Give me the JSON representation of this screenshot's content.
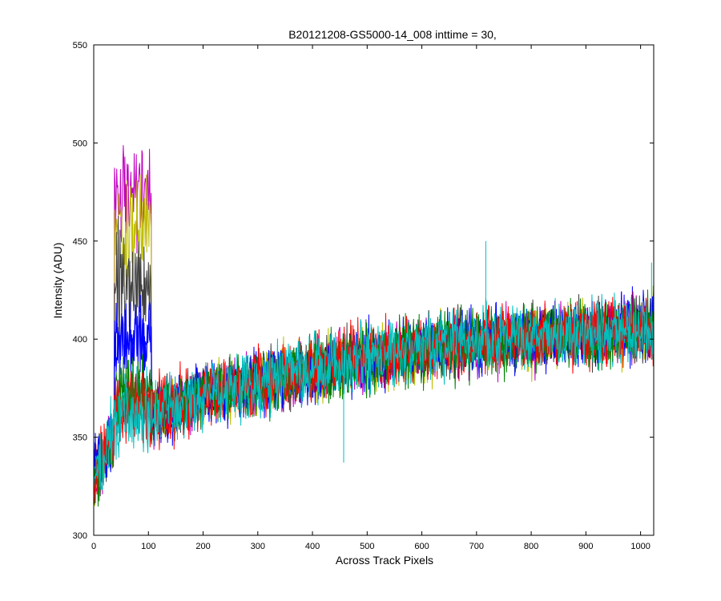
{
  "chart_data": {
    "type": "line",
    "title": "B20121208-GS5000-14_008 inttime = 30,",
    "xlabel": "Across Track Pixels",
    "ylabel": "Intensity (ADU)",
    "xlim": [
      0,
      1024
    ],
    "ylim": [
      300,
      550
    ],
    "xticks": [
      0,
      100,
      200,
      300,
      400,
      500,
      600,
      700,
      800,
      900,
      1000
    ],
    "yticks": [
      300,
      350,
      400,
      450,
      500,
      550
    ],
    "xtick_labels": [
      "0",
      "100",
      "200",
      "300",
      "400",
      "500",
      "600",
      "700",
      "800",
      "900",
      "1000"
    ],
    "ytick_labels": [
      "300",
      "350",
      "400",
      "450",
      "500",
      "550"
    ],
    "grid": false,
    "legend": "none",
    "background_profile": {
      "x": [
        0,
        20,
        40,
        60,
        100,
        150,
        200,
        300,
        400,
        500,
        600,
        700,
        800,
        900,
        1000,
        1024
      ],
      "y": [
        330,
        342,
        352,
        357,
        362,
        366,
        372,
        378,
        384,
        390,
        395,
        399,
        401,
        403,
        405,
        405
      ],
      "noise_amplitude": 14
    },
    "spike_region": {
      "x_range": [
        38,
        105
      ]
    },
    "series": [
      {
        "color": "#0000ff",
        "spike_level": 400
      },
      {
        "color": "#008000",
        "spike_level": 370
      },
      {
        "color": "#ff0000",
        "spike_level": 368
      },
      {
        "color": "#00bfbf",
        "spike_level": 362
      },
      {
        "color": "#bf00bf",
        "spike_level": 475
      },
      {
        "color": "#bfbf00",
        "spike_level": 455
      },
      {
        "color": "#404040",
        "spike_level": 430
      }
    ],
    "draw_order": [
      4,
      5,
      6,
      0,
      1,
      2,
      0,
      3,
      1,
      2,
      3
    ],
    "highlighted_points": [
      {
        "x": 717,
        "y": 450
      },
      {
        "x": 457,
        "y": 337
      },
      {
        "x": 1020,
        "y": 439
      }
    ]
  }
}
